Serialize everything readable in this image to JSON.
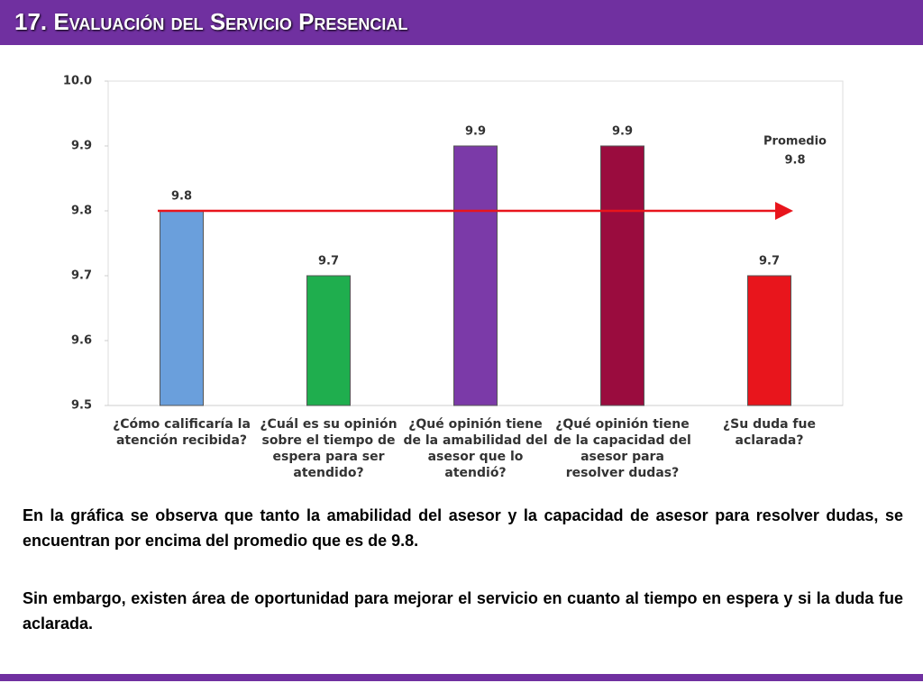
{
  "header": {
    "title": "17. Evaluación del Servicio Presencial"
  },
  "chart_data": {
    "type": "bar",
    "categories": [
      "¿Cómo calificaría la atención recibida?",
      "¿Cuál es su opinión sobre el tiempo de espera para ser atendido?",
      "¿Qué opinión tiene de la amabilidad del asesor que lo atendió?",
      "¿Qué opinión tiene de la capacidad del asesor para resolver dudas?",
      "¿Su duda fue aclarada?"
    ],
    "values": [
      9.8,
      9.7,
      9.9,
      9.9,
      9.7
    ],
    "colors": [
      "#6a9fdc",
      "#1fae4e",
      "#7b3aa8",
      "#9a0c3e",
      "#e8151c"
    ],
    "ylim": [
      9.5,
      10
    ],
    "yticks": [
      9.5,
      9.6,
      9.7,
      9.8,
      9.9,
      {
        "value": 10,
        "label": "10.0"
      }
    ],
    "average": {
      "label": "Promedio",
      "value": 9.8,
      "color": "#e8151c"
    }
  },
  "body": {
    "paragraphs": [
      "En la gráfica se observa que tanto la amabilidad del asesor y la capacidad de asesor para resolver dudas, se encuentran por encima del promedio que es de 9.8.",
      "Sin embargo, existen área de oportunidad para mejorar el servicio en cuanto al tiempo en espera y si la duda fue aclarada."
    ]
  }
}
